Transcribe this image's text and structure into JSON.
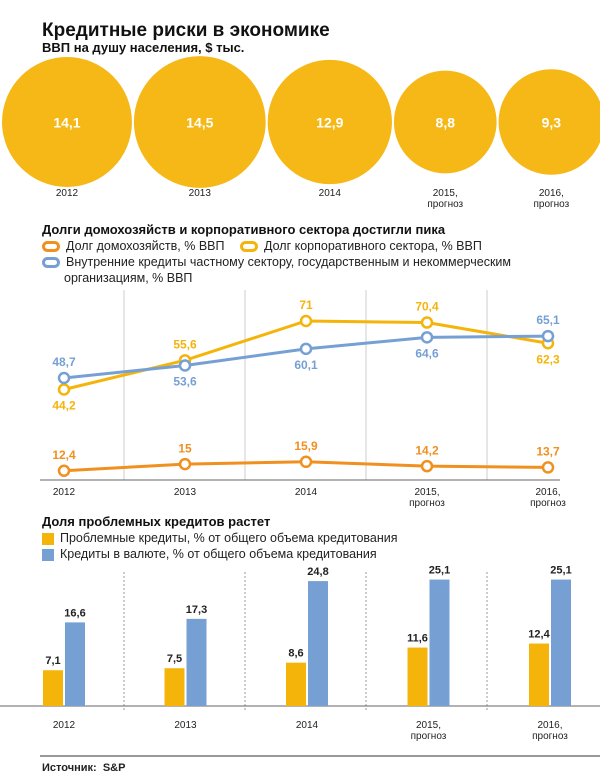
{
  "header": {
    "title": "Кредитные риски в экономике"
  },
  "chart_data": [
    {
      "type": "bubble",
      "title": "ВВП на душу населения, $ тыс.",
      "color": "#f6b816",
      "categories": [
        "2012",
        "2013",
        "2014",
        "2015, прогноз",
        "2016, прогноз"
      ],
      "values": [
        14.1,
        14.5,
        12.9,
        8.8,
        9.3
      ],
      "value_labels": [
        "14,1",
        "14,5",
        "12,9",
        "8,8",
        "9,3"
      ]
    },
    {
      "type": "line",
      "title": "Долги домохозяйств и корпоративного сектора достигли пика",
      "categories": [
        "2012",
        "2013",
        "2014",
        "2015, прогноз",
        "2016, прогноз"
      ],
      "ylim": [
        8,
        80
      ],
      "series": [
        {
          "name": "Долг домохозяйств, % ВВП",
          "color": "#f0901e",
          "values": [
            12.4,
            15,
            15.9,
            14.2,
            13.7
          ],
          "value_labels": [
            "12,4",
            "15",
            "15,9",
            "14,2",
            "13,7"
          ]
        },
        {
          "name": "Долг корпоративного сектора, % ВВП",
          "color": "#f5b40a",
          "values": [
            44.2,
            55.6,
            71,
            70.4,
            62.3
          ],
          "value_labels": [
            "44,2",
            "55,6",
            "71",
            "70,4",
            "62,3"
          ]
        },
        {
          "name": "Внутренние кредиты частному сектору, государственным и некоммерческим организациям, % ВВП",
          "color": "#76a0d4",
          "values": [
            48.7,
            53.6,
            60.1,
            64.6,
            65.1
          ],
          "value_labels": [
            "48,7",
            "53,6",
            "60,1",
            "64,6",
            "65,1"
          ]
        }
      ]
    },
    {
      "type": "bar",
      "title": "Доля проблемных кредитов растет",
      "categories": [
        "2012",
        "2013",
        "2014",
        "2015, прогноз",
        "2016, прогноз"
      ],
      "ylim": [
        0,
        27
      ],
      "series": [
        {
          "name": "Проблемные кредиты, % от общего объема кредитования",
          "color": "#f5b40a",
          "values": [
            7.1,
            7.5,
            8.6,
            11.6,
            12.4
          ],
          "value_labels": [
            "7,1",
            "7,5",
            "8,6",
            "11,6",
            "12,4"
          ]
        },
        {
          "name": "Кредиты в валюте, % от общего объема кредитования",
          "color": "#76a0d4",
          "values": [
            16.6,
            17.3,
            24.8,
            25.1,
            25.1
          ],
          "value_labels": [
            "16,6",
            "17,3",
            "24,8",
            "25,1",
            "25,1"
          ]
        }
      ]
    }
  ],
  "footer": {
    "label": "Источник:",
    "source": "S&P"
  }
}
